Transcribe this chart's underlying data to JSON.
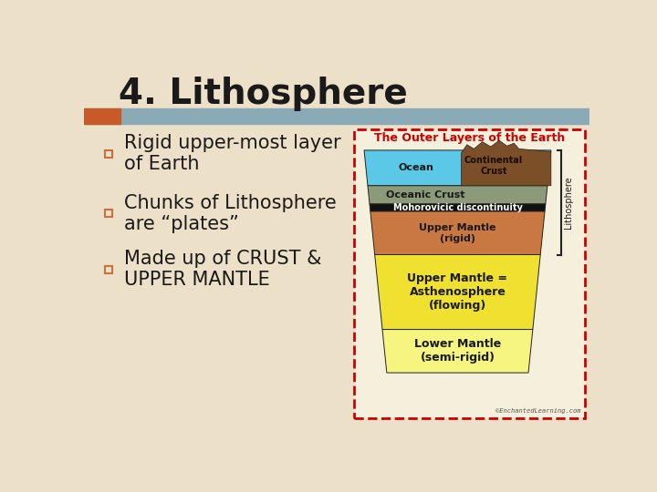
{
  "title": "4. Lithosphere",
  "title_fontsize": 28,
  "title_color": "#1A1A1A",
  "bg_color": "#EDE0C8",
  "header_bar_color": "#8BAAB8",
  "header_accent_color": "#C85A28",
  "bullet_points": [
    "Rigid upper-most layer\nof Earth",
    "Chunks of Lithosphere\nare “plates”",
    "Made up of CRUST &\nUPPER MANTLE"
  ],
  "bullet_sq_color": "#C87040",
  "bullet_color": "#1A1A1A",
  "bullet_fontsize": 15,
  "diagram_title": "The Outer Layers of the Earth",
  "diagram_title_color": "#CC0000",
  "diagram_bg": "#F5F0DC",
  "diagram_border_color": "#CC0000",
  "copyright": "©EnchantedLearning.com"
}
